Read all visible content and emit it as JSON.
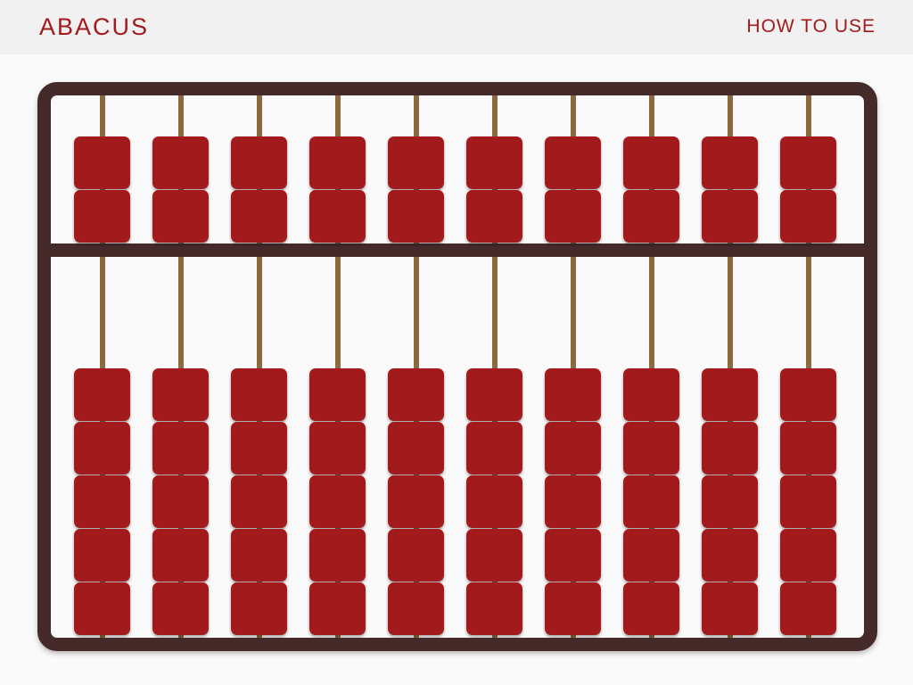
{
  "header": {
    "title": "ABACUS",
    "how_to_use": "HOW TO USE"
  },
  "colors": {
    "brand": "#a31a1c",
    "frame": "#452a2a",
    "rod": "#8b6a3e",
    "bead": "#a31a1c",
    "header_bg": "#f1f1f1"
  },
  "abacus": {
    "columns": 10,
    "upper_beads_per_column": 2,
    "lower_beads_per_column": 5,
    "upper_beads_active": [
      0,
      0,
      0,
      0,
      0,
      0,
      0,
      0,
      0,
      0
    ],
    "lower_beads_active": [
      0,
      0,
      0,
      0,
      0,
      0,
      0,
      0,
      0,
      0
    ]
  }
}
